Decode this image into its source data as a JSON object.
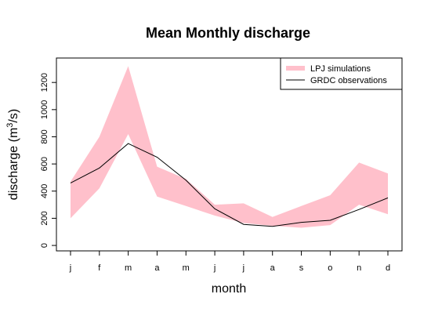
{
  "chart_data": {
    "type": "line",
    "title": "Mean Monthly discharge",
    "xlabel": "month",
    "ylabel_main": "discharge (m",
    "ylabel_sup": "3",
    "ylabel_tail": "/s)",
    "categories": [
      "j",
      "f",
      "m",
      "a",
      "m",
      "j",
      "j",
      "a",
      "s",
      "o",
      "n",
      "d"
    ],
    "ylim": [
      -40,
      1380
    ],
    "yticks": [
      0,
      200,
      400,
      600,
      800,
      1000,
      1200
    ],
    "grid": false,
    "legend_position": "top-right",
    "series": [
      {
        "name": "LPJ simulations",
        "type": "band",
        "color": "#ffc0cb",
        "lower": [
          200,
          420,
          820,
          360,
          290,
          220,
          165,
          145,
          130,
          150,
          300,
          230
        ],
        "upper": [
          470,
          800,
          1320,
          580,
          490,
          300,
          310,
          210,
          290,
          370,
          610,
          530
        ]
      },
      {
        "name": "GRDC observations",
        "type": "line",
        "color": "#000000",
        "values": [
          460,
          570,
          750,
          650,
          480,
          270,
          155,
          140,
          170,
          185,
          265,
          350
        ]
      }
    ]
  }
}
